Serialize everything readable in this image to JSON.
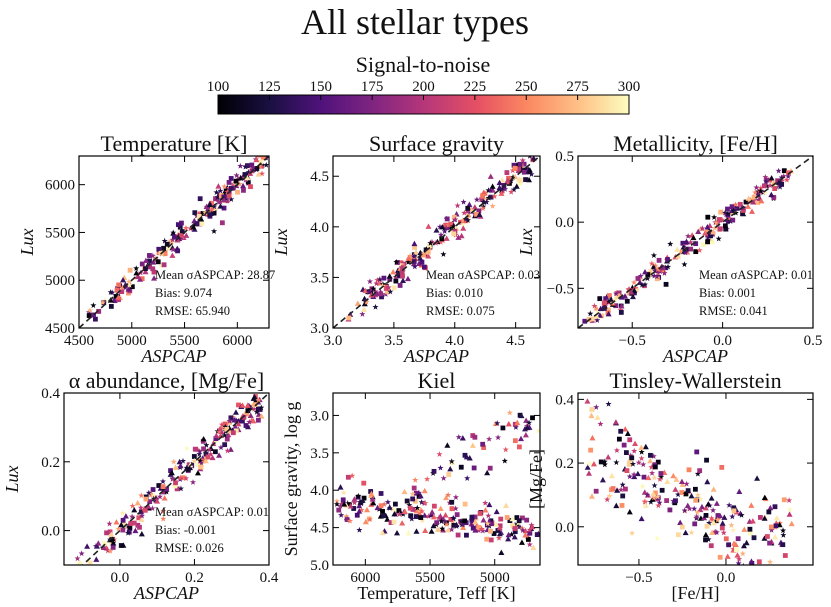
{
  "figure": {
    "title": "All stellar types",
    "colorbar": {
      "label": "Signal-to-noise",
      "min": 100,
      "max": 300,
      "ticks": [
        "100",
        "125",
        "150",
        "175",
        "200",
        "225",
        "250",
        "275",
        "300"
      ],
      "colormap": "magma"
    },
    "markers": [
      "square",
      "triangle",
      "star"
    ]
  },
  "chart_data": [
    {
      "type": "scatter",
      "title": "Temperature [K]",
      "xlabel": "ASPCAP",
      "ylabel": "Lux",
      "xlim": [
        4500,
        6300
      ],
      "ylim": [
        4500,
        6300
      ],
      "xticks": [
        {
          "v": 4500,
          "t": "4500"
        },
        {
          "v": 5000,
          "t": "5000"
        },
        {
          "v": 5500,
          "t": "5500"
        },
        {
          "v": 6000,
          "t": "6000"
        }
      ],
      "yticks": [
        {
          "v": 4500,
          "t": "4500"
        },
        {
          "v": 5000,
          "t": "5000"
        },
        {
          "v": 5500,
          "t": "5500"
        },
        {
          "v": 6000,
          "t": "6000"
        }
      ],
      "stats": [
        "Mean σASPCAP: 28.87",
        "Bias: 9.074",
        "RMSE: 65.940"
      ],
      "one_to_one": true,
      "points": {
        "mode": "diag",
        "n": 240,
        "x0": 4580,
        "x1": 6280,
        "sigma": 65.9,
        "bias": 9.074
      }
    },
    {
      "type": "scatter",
      "title": "Surface gravity",
      "xlabel": "ASPCAP",
      "ylabel": "Lux",
      "xlim": [
        3.0,
        4.7
      ],
      "ylim": [
        3.0,
        4.7
      ],
      "xticks": [
        {
          "v": 3.0,
          "t": "3.0"
        },
        {
          "v": 3.5,
          "t": "3.5"
        },
        {
          "v": 4.0,
          "t": "4.0"
        },
        {
          "v": 4.5,
          "t": "4.5"
        }
      ],
      "yticks": [
        {
          "v": 3.0,
          "t": "3.0"
        },
        {
          "v": 3.5,
          "t": "3.5"
        },
        {
          "v": 4.0,
          "t": "4.0"
        },
        {
          "v": 4.5,
          "t": "4.5"
        }
      ],
      "stats": [
        "Mean σASPCAP: 0.03",
        "Bias: 0.010",
        "RMSE: 0.075"
      ],
      "one_to_one": true,
      "points": {
        "mode": "diag",
        "n": 240,
        "x0": 3.1,
        "x1": 4.65,
        "sigma": 0.075,
        "bias": 0.01
      }
    },
    {
      "type": "scatter",
      "title": "Metallicity, [Fe/H]",
      "xlabel": "ASPCAP",
      "ylabel": "Lux",
      "xlim": [
        -0.8,
        0.5
      ],
      "ylim": [
        -0.8,
        0.5
      ],
      "xticks": [
        {
          "v": -0.5,
          "t": "−0.5"
        },
        {
          "v": 0.0,
          "t": "0.0"
        },
        {
          "v": 0.5,
          "t": "0.5"
        }
      ],
      "yticks": [
        {
          "v": -0.5,
          "t": "−0.5"
        },
        {
          "v": 0.0,
          "t": "0.0"
        },
        {
          "v": 0.5,
          "t": "0.5"
        }
      ],
      "stats": [
        "Mean σASPCAP: 0.01",
        "Bias: 0.001",
        "RMSE: 0.041"
      ],
      "one_to_one": true,
      "points": {
        "mode": "diag",
        "n": 240,
        "x0": -0.78,
        "x1": 0.38,
        "sigma": 0.041,
        "bias": 0.001
      }
    },
    {
      "type": "scatter",
      "title": "α abundance, [Mg/Fe]",
      "xlabel": "ASPCAP",
      "ylabel": "Lux",
      "xlim": [
        -0.15,
        0.4
      ],
      "ylim": [
        -0.1,
        0.4
      ],
      "xticks": [
        {
          "v": 0.0,
          "t": "0.0"
        },
        {
          "v": 0.2,
          "t": "0.2"
        },
        {
          "v": 0.4,
          "t": "0.4"
        }
      ],
      "yticks": [
        {
          "v": 0.0,
          "t": "0.0"
        },
        {
          "v": 0.2,
          "t": "0.2"
        },
        {
          "v": 0.4,
          "t": "0.4"
        }
      ],
      "stats": [
        "Mean σASPCAP: 0.01",
        "Bias: -0.001",
        "RMSE: 0.026"
      ],
      "one_to_one": true,
      "points": {
        "mode": "diag",
        "n": 240,
        "x0": -0.12,
        "x1": 0.38,
        "sigma": 0.026,
        "bias": -0.001
      }
    },
    {
      "type": "scatter",
      "title": "Kiel",
      "xlabel": "Temperature, Teff [K]",
      "ylabel": "Surface gravity, log g",
      "xlim": [
        6250,
        4650
      ],
      "ylim": [
        5.0,
        2.7
      ],
      "xticks": [
        {
          "v": 6000,
          "t": "6000"
        },
        {
          "v": 5500,
          "t": "5500"
        },
        {
          "v": 5000,
          "t": "5000"
        }
      ],
      "yticks": [
        {
          "v": 3.0,
          "t": "3.0"
        },
        {
          "v": 3.5,
          "t": "3.5"
        },
        {
          "v": 4.0,
          "t": "4.0"
        },
        {
          "v": 4.5,
          "t": "4.5"
        },
        {
          "v": 5.0,
          "t": "5.0"
        }
      ],
      "stats": [],
      "one_to_one": false,
      "points": {
        "mode": "kiel",
        "n": 300
      }
    },
    {
      "type": "scatter",
      "title": "Tinsley-Wallerstein",
      "xlabel": "[Fe/H]",
      "ylabel": "[Mg/Fe]",
      "xlim": [
        -0.85,
        0.5
      ],
      "ylim": [
        -0.12,
        0.42
      ],
      "xticks": [
        {
          "v": -0.5,
          "t": "−0.5"
        },
        {
          "v": 0.0,
          "t": "0.0"
        }
      ],
      "yticks": [
        {
          "v": 0.0,
          "t": "0.0"
        },
        {
          "v": 0.2,
          "t": "0.2"
        },
        {
          "v": 0.4,
          "t": "0.4"
        }
      ],
      "stats": [],
      "one_to_one": false,
      "points": {
        "mode": "tw",
        "n": 280
      }
    }
  ]
}
